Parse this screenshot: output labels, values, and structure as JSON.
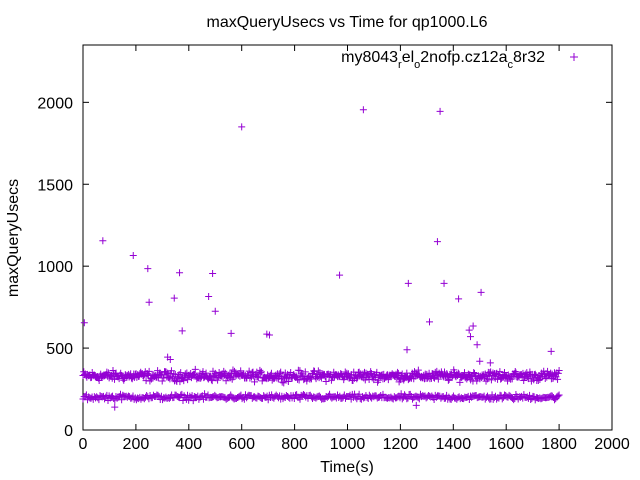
{
  "chart_data": {
    "type": "scatter",
    "title": "maxQueryUsecs vs Time for qp1000.L6",
    "xlabel": "Time(s)",
    "ylabel": "maxQueryUsecs",
    "xlim": [
      0,
      2000
    ],
    "ylim": [
      0,
      2350
    ],
    "x_ticks": [
      0,
      200,
      400,
      600,
      800,
      1000,
      1200,
      1400,
      1600,
      1800,
      2000
    ],
    "y_ticks": [
      0,
      500,
      1000,
      1500,
      2000
    ],
    "grid": false,
    "legend_position": "top-right",
    "marker": "+",
    "series": [
      {
        "name_parts": [
          {
            "text": "my8043"
          },
          {
            "text": "r",
            "sub": true
          },
          {
            "text": "el"
          },
          {
            "text": "o",
            "sub": true
          },
          {
            "text": "2nofp.cz12a"
          },
          {
            "text": "c",
            "sub": true
          },
          {
            "text": "8r32"
          }
        ],
        "color": "#9400d3",
        "bands": [
          {
            "x_range": [
              0,
              1800
            ],
            "y_center": 330,
            "y_spread": 45,
            "count": 620
          },
          {
            "x_range": [
              0,
              1800
            ],
            "y_center": 200,
            "y_spread": 25,
            "count": 420
          }
        ],
        "outliers": [
          {
            "x": 5,
            "y": 655
          },
          {
            "x": 75,
            "y": 1155
          },
          {
            "x": 190,
            "y": 1065
          },
          {
            "x": 245,
            "y": 985
          },
          {
            "x": 250,
            "y": 780
          },
          {
            "x": 345,
            "y": 805
          },
          {
            "x": 365,
            "y": 960
          },
          {
            "x": 375,
            "y": 605
          },
          {
            "x": 475,
            "y": 815
          },
          {
            "x": 490,
            "y": 955
          },
          {
            "x": 500,
            "y": 725
          },
          {
            "x": 560,
            "y": 590
          },
          {
            "x": 600,
            "y": 1850
          },
          {
            "x": 695,
            "y": 585
          },
          {
            "x": 705,
            "y": 580
          },
          {
            "x": 970,
            "y": 945
          },
          {
            "x": 1060,
            "y": 1955
          },
          {
            "x": 1225,
            "y": 490
          },
          {
            "x": 1230,
            "y": 895
          },
          {
            "x": 1310,
            "y": 660
          },
          {
            "x": 1340,
            "y": 1150
          },
          {
            "x": 1350,
            "y": 1945
          },
          {
            "x": 1365,
            "y": 895
          },
          {
            "x": 1420,
            "y": 800
          },
          {
            "x": 1460,
            "y": 610
          },
          {
            "x": 1465,
            "y": 570
          },
          {
            "x": 1475,
            "y": 635
          },
          {
            "x": 1490,
            "y": 520
          },
          {
            "x": 1505,
            "y": 840
          },
          {
            "x": 1770,
            "y": 480
          },
          {
            "x": 320,
            "y": 445
          },
          {
            "x": 330,
            "y": 430
          },
          {
            "x": 1500,
            "y": 420
          },
          {
            "x": 1540,
            "y": 410
          },
          {
            "x": 120,
            "y": 140
          },
          {
            "x": 1260,
            "y": 150
          }
        ]
      }
    ]
  }
}
